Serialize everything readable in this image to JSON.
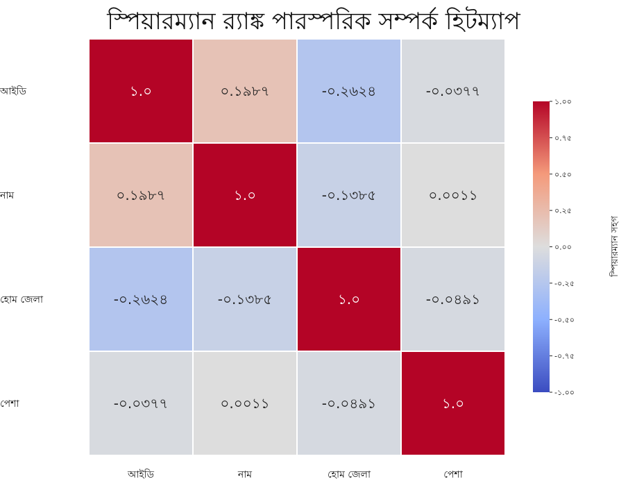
{
  "chart_data": {
    "type": "heatmap",
    "title": "স্পিয়ারম্যান র‍্যাঙ্ক পারস্পরিক সম্পর্ক হিটম্যাপ",
    "rows": [
      "আইডি",
      "নাম",
      "হোম জেলা",
      "পেশা"
    ],
    "columns": [
      "আইডি",
      "নাম",
      "হোম জেলা",
      "পেশা"
    ],
    "values": [
      [
        1.0,
        0.1987,
        -0.2624,
        -0.0377
      ],
      [
        0.1987,
        1.0,
        -0.1385,
        0.0011
      ],
      [
        -0.2624,
        -0.1385,
        1.0,
        -0.0491
      ],
      [
        -0.0377,
        0.0011,
        -0.0491,
        1.0
      ]
    ],
    "cell_labels": [
      [
        "১.০",
        "০.১৯৮৭",
        "-০.২৬২৪",
        "-০.০৩৭৭"
      ],
      [
        "০.১৯৮৭",
        "১.০",
        "-০.১৩৮৫",
        "০.০০১১"
      ],
      [
        "-০.২৬২৪",
        "-০.১৩৮৫",
        "১.০",
        "-০.০৪৯১"
      ],
      [
        "-০.০৩৭৭",
        "০.০০১১",
        "-০.০৪৯১",
        "১.০"
      ]
    ],
    "colorbar": {
      "label": "স্পিয়ারম্যান সহগ",
      "range": [
        -1.0,
        1.0
      ],
      "tick_values": [
        1.0,
        0.75,
        0.5,
        0.25,
        0.0,
        -0.25,
        -0.5,
        -0.75,
        -1.0
      ],
      "tick_labels": [
        "১.০০",
        "০.৭৫",
        "০.৫০",
        "০.২৫",
        "০.০০",
        "-০.২৫",
        "-০.৫০",
        "-০.৭৫",
        "-১.০০"
      ]
    },
    "colormap": "coolwarm",
    "colors": {
      "low": "#3b4cc0",
      "mid": "#dddddd",
      "high": "#b40426",
      "cell_border": "#ffffff"
    }
  }
}
